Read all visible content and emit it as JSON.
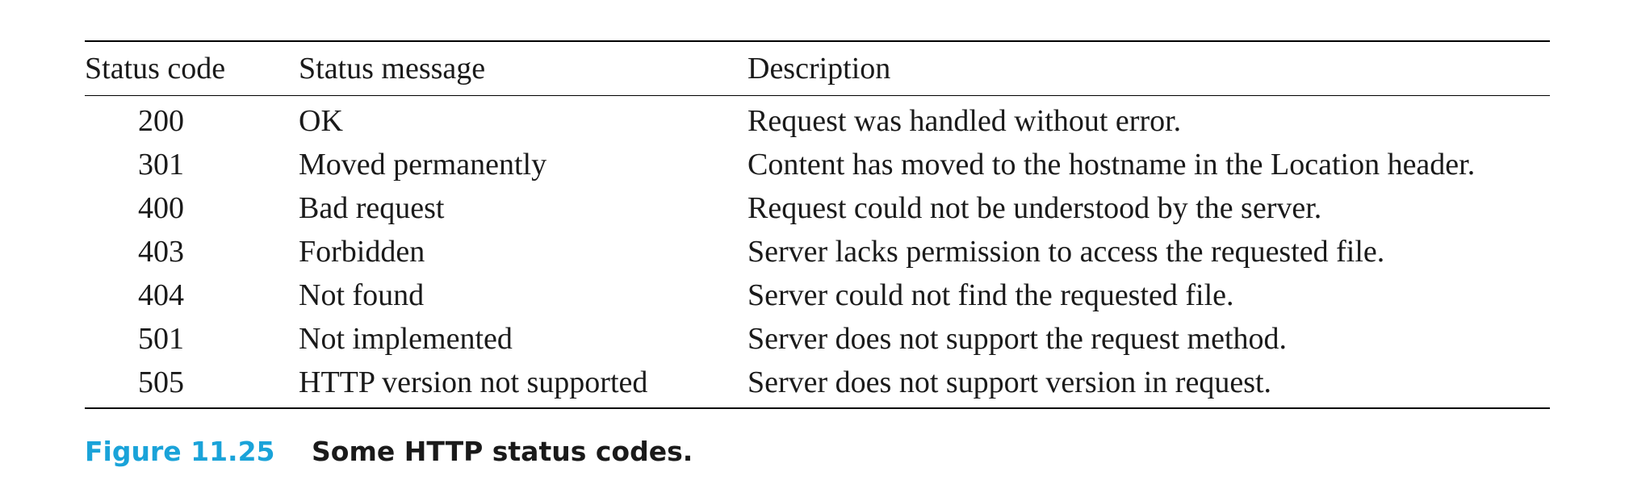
{
  "table": {
    "headers": {
      "code": "Status code",
      "message": "Status message",
      "description": "Description"
    },
    "rows": [
      {
        "code": "200",
        "message": "OK",
        "description": "Request was handled without error."
      },
      {
        "code": "301",
        "message": "Moved permanently",
        "description": "Content has moved to the hostname in the Location header."
      },
      {
        "code": "400",
        "message": "Bad request",
        "description": "Request could not be understood by the server."
      },
      {
        "code": "403",
        "message": "Forbidden",
        "description": "Server lacks permission to access the requested file."
      },
      {
        "code": "404",
        "message": "Not found",
        "description": "Server could not find the requested file."
      },
      {
        "code": "501",
        "message": "Not implemented",
        "description": "Server does not support the request method."
      },
      {
        "code": "505",
        "message": "HTTP version not supported",
        "description": "Server does not support version in request."
      }
    ]
  },
  "caption": {
    "label": "Figure 11.25",
    "text": "Some HTTP status codes."
  },
  "colors": {
    "caption_label": "#1aa3d9",
    "text": "#1a1a1a"
  }
}
